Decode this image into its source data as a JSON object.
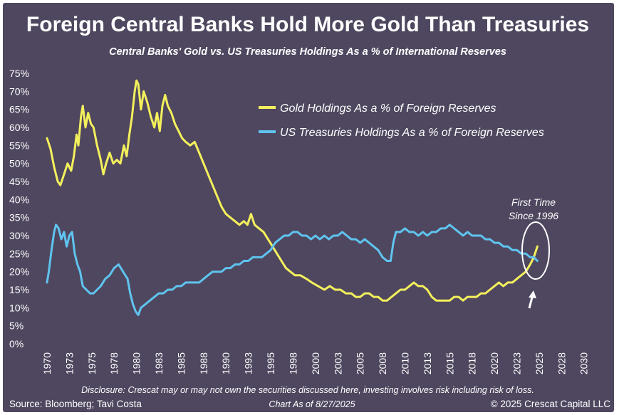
{
  "chart_data": {
    "type": "line",
    "title": "Foreign Central Banks Hold More Gold Than Treasuries",
    "subtitle": "Central Banks' Gold vs. US Treasuries Holdings As a % of International Reserves",
    "ylim": [
      0,
      75
    ],
    "xlim": [
      1970,
      2030.5
    ],
    "yticks": [
      0,
      5,
      10,
      15,
      20,
      25,
      30,
      35,
      40,
      45,
      50,
      55,
      60,
      65,
      70,
      75
    ],
    "ytick_labels": [
      "0%",
      "5%",
      "10%",
      "15%",
      "20%",
      "25%",
      "30%",
      "35%",
      "40%",
      "45%",
      "50%",
      "55%",
      "60%",
      "65%",
      "70%",
      "75%"
    ],
    "xticks": [
      1970,
      1972.5,
      1975,
      1977.5,
      1980,
      1982.5,
      1985,
      1987.5,
      1990,
      1992.5,
      1995,
      1997.5,
      2000,
      2002.5,
      2005,
      2007.5,
      2010,
      2012.5,
      2015,
      2017.5,
      2020,
      2022.5,
      2025,
      2027.5,
      2030
    ],
    "xtick_labels": [
      "1970",
      "1973",
      "1975",
      "1978",
      "1980",
      "1983",
      "1985",
      "1988",
      "1990",
      "1993",
      "1995",
      "1998",
      "2000",
      "2003",
      "2005",
      "2008",
      "2010",
      "2013",
      "2015",
      "2018",
      "2020",
      "2023",
      "2025",
      "2028",
      "2030"
    ],
    "series": [
      {
        "name": "Gold Holdings As a % of Foreign Reserves",
        "color": "#f3f05c",
        "points": [
          [
            1970,
            57
          ],
          [
            1970.4,
            54
          ],
          [
            1970.8,
            49
          ],
          [
            1971.2,
            45
          ],
          [
            1971.5,
            44
          ],
          [
            1971.9,
            47
          ],
          [
            1972.3,
            50
          ],
          [
            1972.7,
            48
          ],
          [
            1973.0,
            52
          ],
          [
            1973.3,
            58
          ],
          [
            1973.5,
            55
          ],
          [
            1973.8,
            63
          ],
          [
            1974.0,
            66
          ],
          [
            1974.3,
            60
          ],
          [
            1974.6,
            64
          ],
          [
            1974.9,
            61
          ],
          [
            1975.2,
            60
          ],
          [
            1975.6,
            55
          ],
          [
            1976.0,
            51
          ],
          [
            1976.3,
            47
          ],
          [
            1976.6,
            50
          ],
          [
            1977.0,
            53
          ],
          [
            1977.4,
            50
          ],
          [
            1977.8,
            51
          ],
          [
            1978.2,
            50
          ],
          [
            1978.6,
            55
          ],
          [
            1978.9,
            52
          ],
          [
            1979.2,
            58
          ],
          [
            1979.5,
            63
          ],
          [
            1979.8,
            70
          ],
          [
            1980.0,
            73
          ],
          [
            1980.2,
            72
          ],
          [
            1980.5,
            65
          ],
          [
            1980.8,
            70
          ],
          [
            1981.2,
            67
          ],
          [
            1981.6,
            63
          ],
          [
            1982.0,
            60
          ],
          [
            1982.3,
            64
          ],
          [
            1982.6,
            59
          ],
          [
            1982.9,
            66
          ],
          [
            1983.2,
            69
          ],
          [
            1983.5,
            66
          ],
          [
            1983.9,
            64
          ],
          [
            1984.3,
            61
          ],
          [
            1984.7,
            59
          ],
          [
            1985.1,
            57
          ],
          [
            1985.5,
            56
          ],
          [
            1986.0,
            55
          ],
          [
            1986.5,
            56
          ],
          [
            1987.0,
            53
          ],
          [
            1987.5,
            50
          ],
          [
            1988.0,
            47
          ],
          [
            1988.5,
            44
          ],
          [
            1989.0,
            41
          ],
          [
            1989.5,
            38
          ],
          [
            1990.0,
            36
          ],
          [
            1990.5,
            35
          ],
          [
            1991.0,
            34
          ],
          [
            1991.5,
            33
          ],
          [
            1992.0,
            34
          ],
          [
            1992.4,
            33
          ],
          [
            1992.8,
            36
          ],
          [
            1993.2,
            33
          ],
          [
            1993.7,
            32
          ],
          [
            1994.2,
            31
          ],
          [
            1994.7,
            29
          ],
          [
            1995.2,
            27
          ],
          [
            1995.7,
            25
          ],
          [
            1996.2,
            23
          ],
          [
            1996.7,
            21
          ],
          [
            1997.2,
            20
          ],
          [
            1997.7,
            19
          ],
          [
            1998.3,
            19
          ],
          [
            1999.0,
            18
          ],
          [
            1999.6,
            17
          ],
          [
            2000.3,
            16
          ],
          [
            2001.0,
            15
          ],
          [
            2001.6,
            16
          ],
          [
            2002.2,
            15
          ],
          [
            2002.8,
            15
          ],
          [
            2003.4,
            14
          ],
          [
            2004.0,
            14
          ],
          [
            2004.5,
            13
          ],
          [
            2005.0,
            13
          ],
          [
            2005.5,
            14
          ],
          [
            2006.0,
            14
          ],
          [
            2006.5,
            13
          ],
          [
            2007.0,
            13
          ],
          [
            2007.5,
            12
          ],
          [
            2008.0,
            12
          ],
          [
            2008.5,
            13
          ],
          [
            2009.0,
            14
          ],
          [
            2009.5,
            15
          ],
          [
            2010.0,
            15
          ],
          [
            2010.5,
            16
          ],
          [
            2011.0,
            17
          ],
          [
            2011.5,
            16
          ],
          [
            2012.0,
            16
          ],
          [
            2012.5,
            15
          ],
          [
            2013.0,
            13
          ],
          [
            2013.5,
            12
          ],
          [
            2014.0,
            12
          ],
          [
            2014.5,
            12
          ],
          [
            2015.0,
            12
          ],
          [
            2015.5,
            13
          ],
          [
            2016.0,
            13
          ],
          [
            2016.5,
            12
          ],
          [
            2017.0,
            13
          ],
          [
            2017.5,
            13
          ],
          [
            2018.0,
            13
          ],
          [
            2018.5,
            14
          ],
          [
            2019.0,
            14
          ],
          [
            2019.5,
            15
          ],
          [
            2020.0,
            16
          ],
          [
            2020.5,
            17
          ],
          [
            2021.0,
            16
          ],
          [
            2021.5,
            17
          ],
          [
            2022.0,
            17
          ],
          [
            2022.5,
            18
          ],
          [
            2023.0,
            19
          ],
          [
            2023.5,
            20
          ],
          [
            2024.0,
            22
          ],
          [
            2024.4,
            24
          ],
          [
            2024.8,
            27
          ]
        ]
      },
      {
        "name": "US Treasuries Holdings As a % of Foreign Reserves",
        "color": "#5fc4ef",
        "points": [
          [
            1970,
            17
          ],
          [
            1970.2,
            20
          ],
          [
            1970.5,
            26
          ],
          [
            1970.8,
            31
          ],
          [
            1971.0,
            33
          ],
          [
            1971.3,
            32
          ],
          [
            1971.6,
            29
          ],
          [
            1971.9,
            31
          ],
          [
            1972.2,
            27
          ],
          [
            1972.5,
            30
          ],
          [
            1972.8,
            31
          ],
          [
            1973.1,
            25
          ],
          [
            1973.4,
            22
          ],
          [
            1973.7,
            20
          ],
          [
            1974.0,
            16
          ],
          [
            1974.4,
            15
          ],
          [
            1974.8,
            14
          ],
          [
            1975.2,
            14
          ],
          [
            1975.6,
            15
          ],
          [
            1976.0,
            16
          ],
          [
            1976.5,
            18
          ],
          [
            1977.0,
            19
          ],
          [
            1977.5,
            21
          ],
          [
            1978.0,
            22
          ],
          [
            1978.5,
            20
          ],
          [
            1979.0,
            18
          ],
          [
            1979.3,
            14
          ],
          [
            1979.6,
            11
          ],
          [
            1979.9,
            9
          ],
          [
            1980.2,
            8
          ],
          [
            1980.5,
            10
          ],
          [
            1981.0,
            11
          ],
          [
            1981.5,
            12
          ],
          [
            1982.0,
            13
          ],
          [
            1982.5,
            14
          ],
          [
            1983.0,
            14
          ],
          [
            1983.5,
            15
          ],
          [
            1984.0,
            15
          ],
          [
            1984.5,
            16
          ],
          [
            1985.0,
            16
          ],
          [
            1985.5,
            17
          ],
          [
            1986.0,
            17
          ],
          [
            1986.5,
            17
          ],
          [
            1987.0,
            17
          ],
          [
            1987.5,
            18
          ],
          [
            1988.0,
            19
          ],
          [
            1988.5,
            20
          ],
          [
            1989.0,
            20
          ],
          [
            1989.5,
            20
          ],
          [
            1990.0,
            21
          ],
          [
            1990.5,
            21
          ],
          [
            1991.0,
            22
          ],
          [
            1991.5,
            22
          ],
          [
            1992.0,
            23
          ],
          [
            1992.5,
            23
          ],
          [
            1993.0,
            24
          ],
          [
            1993.5,
            24
          ],
          [
            1994.0,
            24
          ],
          [
            1994.5,
            25
          ],
          [
            1995.0,
            26
          ],
          [
            1995.5,
            28
          ],
          [
            1996.0,
            29
          ],
          [
            1996.5,
            30
          ],
          [
            1997.0,
            30
          ],
          [
            1997.5,
            31
          ],
          [
            1998.0,
            31
          ],
          [
            1998.5,
            30
          ],
          [
            1999.0,
            30
          ],
          [
            1999.5,
            29
          ],
          [
            2000.0,
            30
          ],
          [
            2000.5,
            29
          ],
          [
            2001.0,
            30
          ],
          [
            2001.5,
            29
          ],
          [
            2002.0,
            30
          ],
          [
            2002.5,
            30
          ],
          [
            2003.0,
            31
          ],
          [
            2003.5,
            30
          ],
          [
            2004.0,
            29
          ],
          [
            2004.5,
            29
          ],
          [
            2005.0,
            28
          ],
          [
            2005.5,
            29
          ],
          [
            2006.0,
            28
          ],
          [
            2006.5,
            27
          ],
          [
            2007.0,
            26
          ],
          [
            2007.5,
            24
          ],
          [
            2008.0,
            23
          ],
          [
            2008.4,
            23
          ],
          [
            2008.7,
            28
          ],
          [
            2009.0,
            31
          ],
          [
            2009.5,
            31
          ],
          [
            2010.0,
            32
          ],
          [
            2010.5,
            31
          ],
          [
            2011.0,
            31
          ],
          [
            2011.5,
            30
          ],
          [
            2012.0,
            31
          ],
          [
            2012.5,
            30
          ],
          [
            2013.0,
            31
          ],
          [
            2013.5,
            31
          ],
          [
            2014.0,
            32
          ],
          [
            2014.5,
            32
          ],
          [
            2015.0,
            33
          ],
          [
            2015.5,
            32
          ],
          [
            2016.0,
            31
          ],
          [
            2016.5,
            30
          ],
          [
            2017.0,
            31
          ],
          [
            2017.5,
            30
          ],
          [
            2018.0,
            30
          ],
          [
            2018.5,
            30
          ],
          [
            2019.0,
            29
          ],
          [
            2019.5,
            29
          ],
          [
            2020.0,
            28
          ],
          [
            2020.5,
            28
          ],
          [
            2021.0,
            27
          ],
          [
            2021.5,
            27
          ],
          [
            2022.0,
            26
          ],
          [
            2022.5,
            26
          ],
          [
            2023.0,
            25
          ],
          [
            2023.5,
            25
          ],
          [
            2024.0,
            24
          ],
          [
            2024.4,
            24
          ],
          [
            2024.8,
            23
          ]
        ]
      }
    ],
    "annotation": {
      "line1": "First Time",
      "line2": "Since 1996"
    }
  },
  "footer": {
    "disclosure": "Disclosure: Crescat may or may not own the securities discussed here, investing involves risk including risk of loss.",
    "source": "Source: Bloomberg; Tavi Costa",
    "date": "Chart As of 8/27/2025",
    "copyright": "© 2025 Crescat Capital LLC"
  },
  "colors": {
    "background": "#4f475f",
    "gold": "#f3f05c",
    "treasuries": "#5fc4ef",
    "text": "#ffffff"
  }
}
